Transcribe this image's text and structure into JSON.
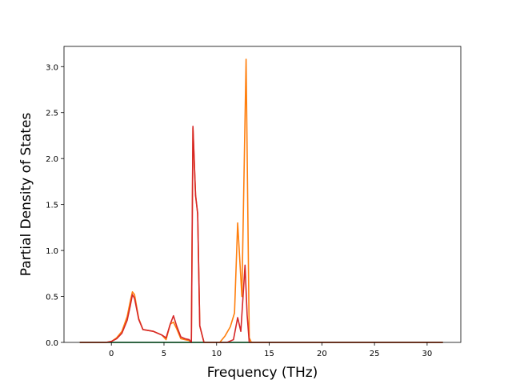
{
  "chart_data": {
    "type": "line",
    "title": "",
    "xlabel": "Frequency (THz)",
    "ylabel": "Partial Density of States",
    "xlim": [
      -4.5,
      33.2
    ],
    "ylim": [
      0,
      3.22
    ],
    "xticks": [
      0,
      5,
      10,
      15,
      20,
      25,
      30
    ],
    "yticks": [
      0.0,
      0.5,
      1.0,
      1.5,
      2.0,
      2.5,
      3.0
    ],
    "xtick_labels": [
      "0",
      "5",
      "10",
      "15",
      "20",
      "25",
      "30"
    ],
    "ytick_labels": [
      "0.0",
      "0.5",
      "1.0",
      "1.5",
      "2.0",
      "2.5",
      "3.0"
    ],
    "grid": false,
    "legend": "none",
    "series": [
      {
        "color": "#1f77b4",
        "x": [
          -3.0,
          31.5
        ],
        "y": [
          0.0,
          0.0
        ]
      },
      {
        "color": "#ff7f0e",
        "x": [
          -3.0,
          -0.5,
          0.0,
          0.5,
          1.0,
          1.5,
          1.8,
          2.0,
          2.2,
          2.6,
          3.0,
          4.0,
          4.8,
          5.2,
          5.6,
          5.9,
          6.2,
          6.6,
          7.0,
          7.4,
          7.6,
          7.75,
          8.0,
          8.2,
          8.4,
          8.8,
          9.5,
          10.3,
          10.8,
          11.3,
          11.7,
          12.0,
          12.4,
          12.8,
          13.1,
          13.3,
          14.0,
          20.0,
          25.0,
          31.5
        ],
        "y": [
          0.0,
          0.0,
          0.01,
          0.05,
          0.12,
          0.28,
          0.45,
          0.55,
          0.52,
          0.26,
          0.14,
          0.12,
          0.08,
          0.03,
          0.2,
          0.22,
          0.15,
          0.04,
          0.03,
          0.02,
          0.0,
          2.33,
          1.6,
          1.4,
          0.18,
          0.0,
          0.0,
          0.0,
          0.07,
          0.17,
          0.32,
          1.3,
          0.5,
          3.08,
          0.05,
          0.0,
          0.0,
          0.0,
          0.0,
          0.0
        ]
      },
      {
        "color": "#2ca02c",
        "x": [
          -3.0,
          31.5
        ],
        "y": [
          0.0,
          0.0
        ]
      },
      {
        "color": "#d62728",
        "x": [
          -3.0,
          -0.5,
          0.0,
          0.5,
          1.0,
          1.5,
          1.8,
          2.0,
          2.2,
          2.6,
          3.0,
          4.0,
          4.8,
          5.2,
          5.6,
          5.9,
          6.2,
          6.6,
          7.0,
          7.4,
          7.6,
          7.75,
          8.0,
          8.2,
          8.4,
          8.8,
          10.0,
          11.0,
          11.6,
          12.0,
          12.3,
          12.7,
          12.9,
          13.1,
          14.0,
          20.0,
          25.0,
          31.5
        ],
        "y": [
          0.0,
          0.0,
          0.01,
          0.04,
          0.1,
          0.24,
          0.4,
          0.52,
          0.48,
          0.25,
          0.14,
          0.12,
          0.08,
          0.05,
          0.2,
          0.29,
          0.18,
          0.06,
          0.04,
          0.03,
          0.0,
          2.35,
          1.6,
          1.4,
          0.18,
          0.0,
          0.0,
          0.0,
          0.03,
          0.27,
          0.12,
          0.84,
          0.3,
          0.0,
          0.0,
          0.0,
          0.0,
          0.0
        ]
      }
    ]
  }
}
